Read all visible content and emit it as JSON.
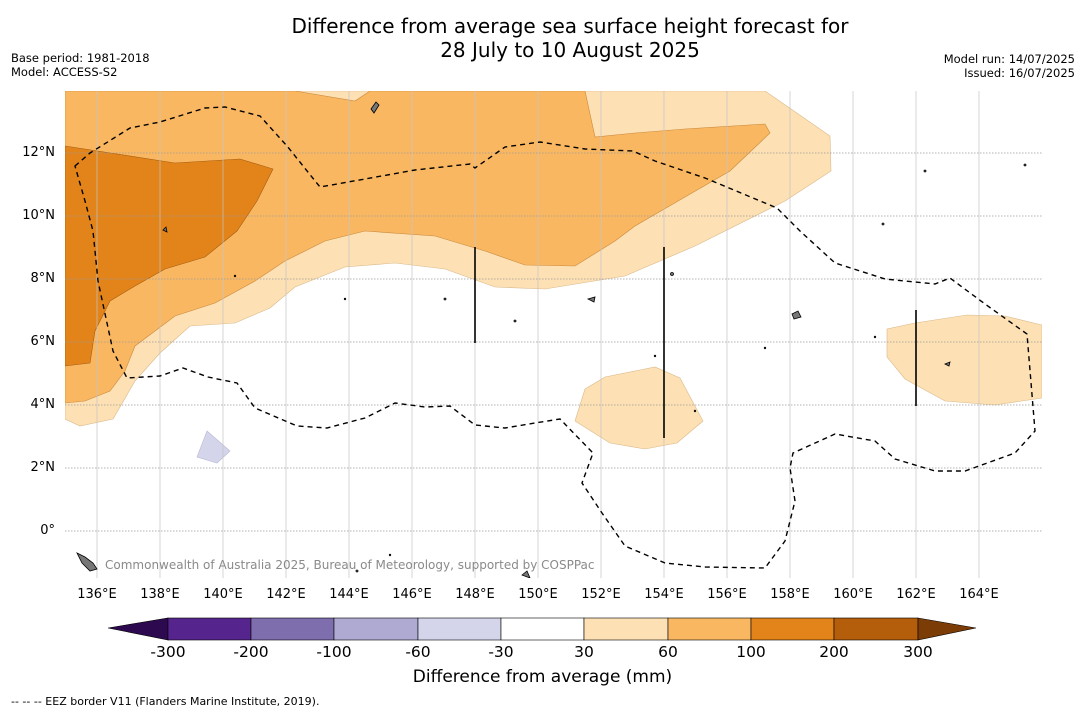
{
  "title_line1": "Difference from average sea surface height forecast for",
  "title_line2": "28 July to 10 August 2025",
  "base_period": "Base period: 1981-2018",
  "model": "Model: ACCESS-S2",
  "model_run": "Model run: 14/07/2025",
  "issued": "Issued: 16/07/2025",
  "map": {
    "lat_labels": [
      "12°N",
      "10°N",
      "8°N",
      "6°N",
      "4°N",
      "2°N",
      "0°"
    ],
    "lon_labels": [
      "136°E",
      "138°E",
      "140°E",
      "142°E",
      "144°E",
      "146°E",
      "148°E",
      "150°E",
      "152°E",
      "154°E",
      "156°E",
      "158°E",
      "160°E",
      "162°E",
      "164°E"
    ],
    "copyright": "Commonwealth of Australia 2025, Bureau of Meteorology, supported by COSPPac"
  },
  "colorbar": {
    "title": "Difference from average (mm)",
    "tick_labels": [
      "-300",
      "-200",
      "-100",
      "-60",
      "-30",
      "30",
      "60",
      "100",
      "200",
      "300"
    ],
    "colors": [
      "#2d0a4f",
      "#55258d",
      "#7e6eae",
      "#aeaad2",
      "#d4d5ea",
      "#ffffff",
      "#fde0b4",
      "#fab762",
      "#e2841a",
      "#b45e0c",
      "#7c3c06"
    ]
  },
  "footer": "--  --  -- EEZ border V11 (Flanders Marine Institute, 2019)."
}
